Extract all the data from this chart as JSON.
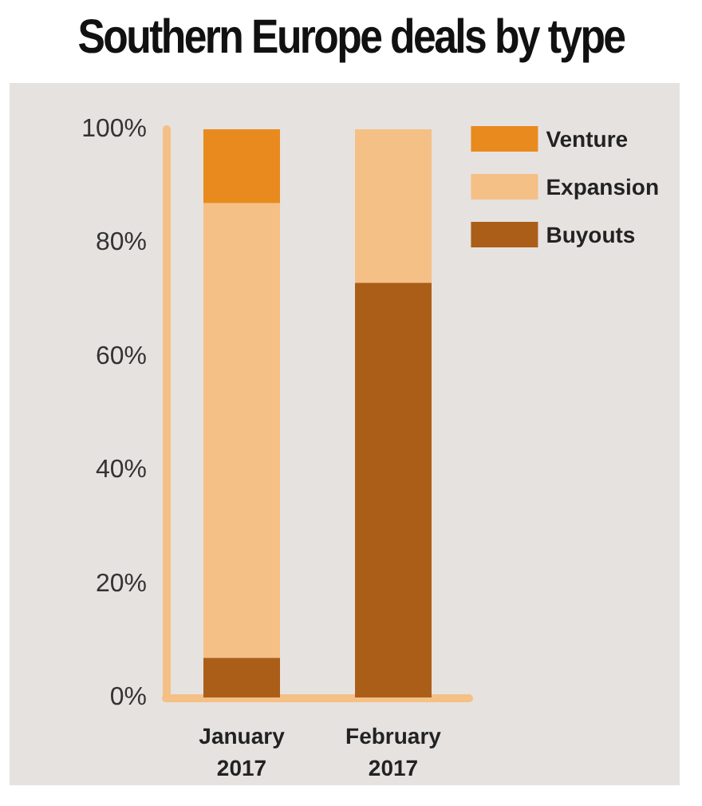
{
  "chart_data": {
    "type": "bar",
    "title": "Southern Europe deals by type",
    "categories": [
      "January\n2017",
      "February\n2017"
    ],
    "stacked": true,
    "series": [
      {
        "name": "Buyouts",
        "color": "#ab5e18",
        "values": [
          7,
          73
        ]
      },
      {
        "name": "Expansion",
        "color": "#f5c085",
        "values": [
          80,
          27
        ]
      },
      {
        "name": "Venture",
        "color": "#e98a1e",
        "values": [
          13,
          0
        ]
      }
    ],
    "ylim": [
      0,
      100
    ],
    "yticks": [
      {
        "value": 0,
        "label": "0%"
      },
      {
        "value": 20,
        "label": "20%"
      },
      {
        "value": 40,
        "label": "40%"
      },
      {
        "value": 60,
        "label": "60%"
      },
      {
        "value": 80,
        "label": "80%"
      },
      {
        "value": 100,
        "label": "100%"
      }
    ],
    "grid": false,
    "legend": "top right"
  }
}
